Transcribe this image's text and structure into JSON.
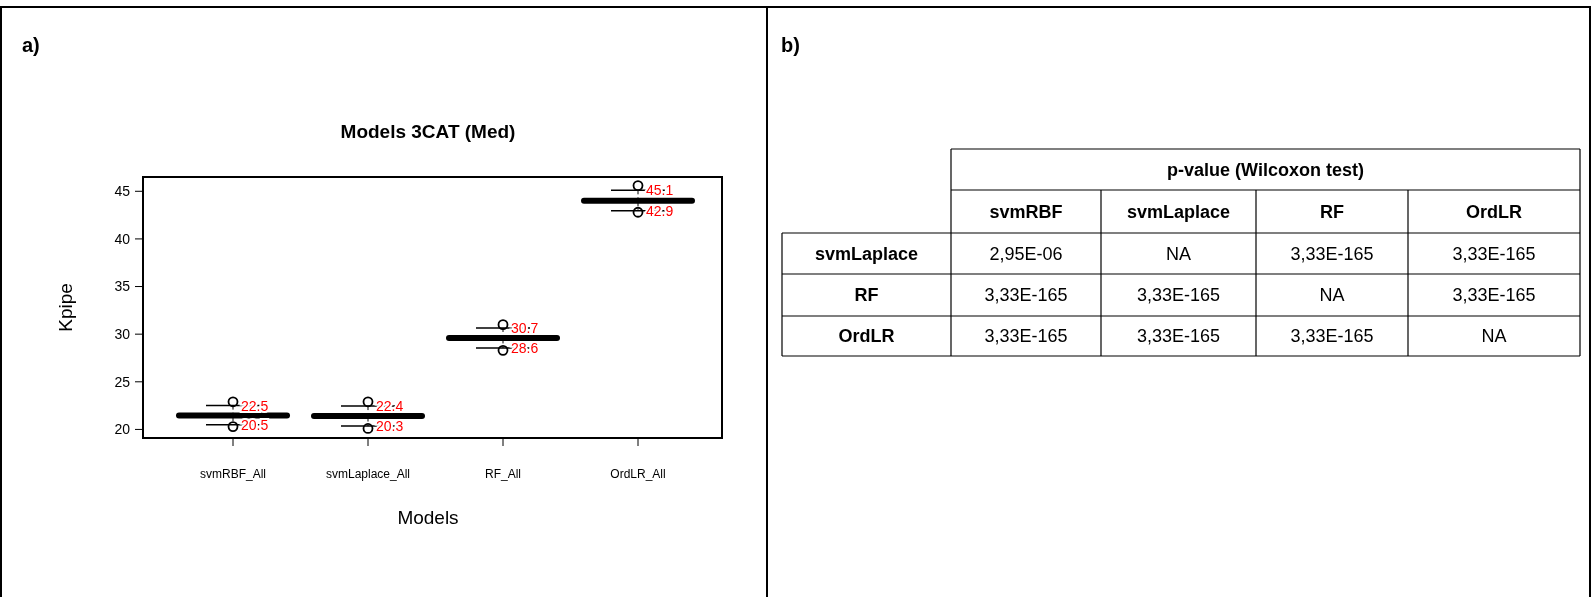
{
  "chart_data": [
    {
      "type": "box",
      "title": "Models 3CAT (Med)",
      "xlabel": "Models",
      "ylabel": "Kpipe",
      "categories": [
        "svmRBF_All",
        "svmLaplace_All",
        "RF_All",
        "OrdLR_All"
      ],
      "boxes": [
        {
          "low": 20.5,
          "q1": 21.3,
          "median": 21.45,
          "q3": 21.6,
          "high": 22.5,
          "outliers": [
            20.3,
            22.9
          ]
        },
        {
          "low": 20.35,
          "q1": 21.25,
          "median": 21.4,
          "q3": 21.55,
          "high": 22.45,
          "outliers": [
            20.1,
            22.9
          ]
        },
        {
          "low": 28.55,
          "q1": 29.45,
          "median": 29.6,
          "q3": 29.75,
          "high": 30.65,
          "outliers": [
            28.3,
            31.0
          ]
        },
        {
          "low": 42.95,
          "q1": 43.85,
          "median": 44.0,
          "q3": 44.15,
          "high": 45.1,
          "outliers": [
            42.8,
            45.6
          ]
        }
      ],
      "ylim": [
        19.1,
        46.5
      ],
      "yticks": [
        20,
        25,
        30,
        35,
        40,
        45
      ],
      "annotations": [
        "a)",
        {
          "text": "22.5",
          "x": "svmRBF_All",
          "y": 22.5
        },
        {
          "text": "20.5",
          "x": "svmRBF_All",
          "y": 20.5
        },
        {
          "text": "22.4",
          "x": "svmLaplace_All",
          "y": 22.45
        },
        {
          "text": "20.3",
          "x": "svmLaplace_All",
          "y": 20.35
        },
        {
          "text": "30.7",
          "x": "RF_All",
          "y": 30.65
        },
        {
          "text": "28.6",
          "x": "RF_All",
          "y": 28.55
        },
        {
          "text": "45.1",
          "x": "OrdLR_All",
          "y": 45.1
        },
        {
          "text": "42.9",
          "x": "OrdLR_All",
          "y": 42.95
        }
      ]
    },
    {
      "type": "other",
      "title": "p-value (Wilcoxon test)",
      "categories": [
        "svmRBF",
        "svmLaplace",
        "RF",
        "OrdLR"
      ],
      "y_categories": [
        "svmLaplace",
        "RF",
        "OrdLR"
      ],
      "cell_labels": [
        [
          "2,95E-06",
          "NA",
          "3,33E-165",
          "3,33E-165"
        ],
        [
          "3,33E-165",
          "3,33E-165",
          "NA",
          "3,33E-165"
        ],
        [
          "3,33E-165",
          "3,33E-165",
          "3,33E-165",
          "NA"
        ]
      ],
      "annotations": [
        "b)"
      ]
    }
  ]
}
